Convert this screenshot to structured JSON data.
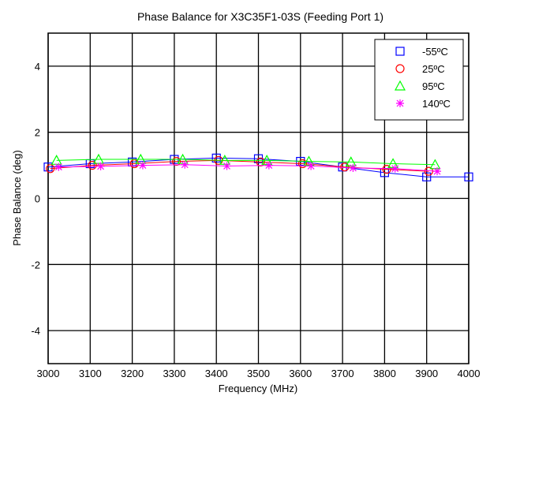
{
  "chart_data": {
    "type": "line",
    "title": "Phase Balance for X3C35F1-03S (Feeding Port 1)",
    "xlabel": "Frequency (MHz)",
    "ylabel": "Phase Balance (deg)",
    "xlim": [
      3000,
      4000
    ],
    "ylim": [
      -5,
      5
    ],
    "x_ticks": [
      "3000",
      "3100",
      "3200",
      "3300",
      "3400",
      "3500",
      "3600",
      "3700",
      "3800",
      "3900",
      "4000"
    ],
    "y_ticks": [
      "4",
      "2",
      "0",
      "-2",
      "-4"
    ],
    "grid": true,
    "legend_position": "top-right",
    "series": [
      {
        "name": "-55ºC",
        "color": "#0000ff",
        "marker": "square",
        "x": [
          3000,
          3100,
          3200,
          3300,
          3400,
          3500,
          3600,
          3700,
          3800,
          3900,
          4000
        ],
        "y": [
          0.95,
          1.05,
          1.1,
          1.18,
          1.22,
          1.2,
          1.12,
          0.95,
          0.78,
          0.65,
          0.65
        ]
      },
      {
        "name": "25ºC",
        "color": "#ff0000",
        "marker": "circle",
        "x": [
          3005,
          3105,
          3205,
          3305,
          3405,
          3505,
          3605,
          3705,
          3805,
          3905
        ],
        "y": [
          0.9,
          1.0,
          1.05,
          1.12,
          1.15,
          1.1,
          1.05,
          0.95,
          0.88,
          0.82
        ]
      },
      {
        "name": "95ºC",
        "color": "#00ff00",
        "marker": "triangle",
        "x": [
          3020,
          3120,
          3220,
          3320,
          3420,
          3520,
          3620,
          3720,
          3820,
          3920
        ],
        "y": [
          1.15,
          1.18,
          1.18,
          1.18,
          1.15,
          1.15,
          1.12,
          1.1,
          1.05,
          1.02
        ]
      },
      {
        "name": "140ºC",
        "color": "#ff00ff",
        "marker": "asterisk",
        "x": [
          3025,
          3125,
          3225,
          3325,
          3425,
          3525,
          3625,
          3725,
          3825,
          3925
        ],
        "y": [
          0.95,
          0.97,
          1.0,
          1.02,
          0.98,
          1.0,
          0.98,
          0.92,
          0.9,
          0.82
        ]
      }
    ]
  }
}
